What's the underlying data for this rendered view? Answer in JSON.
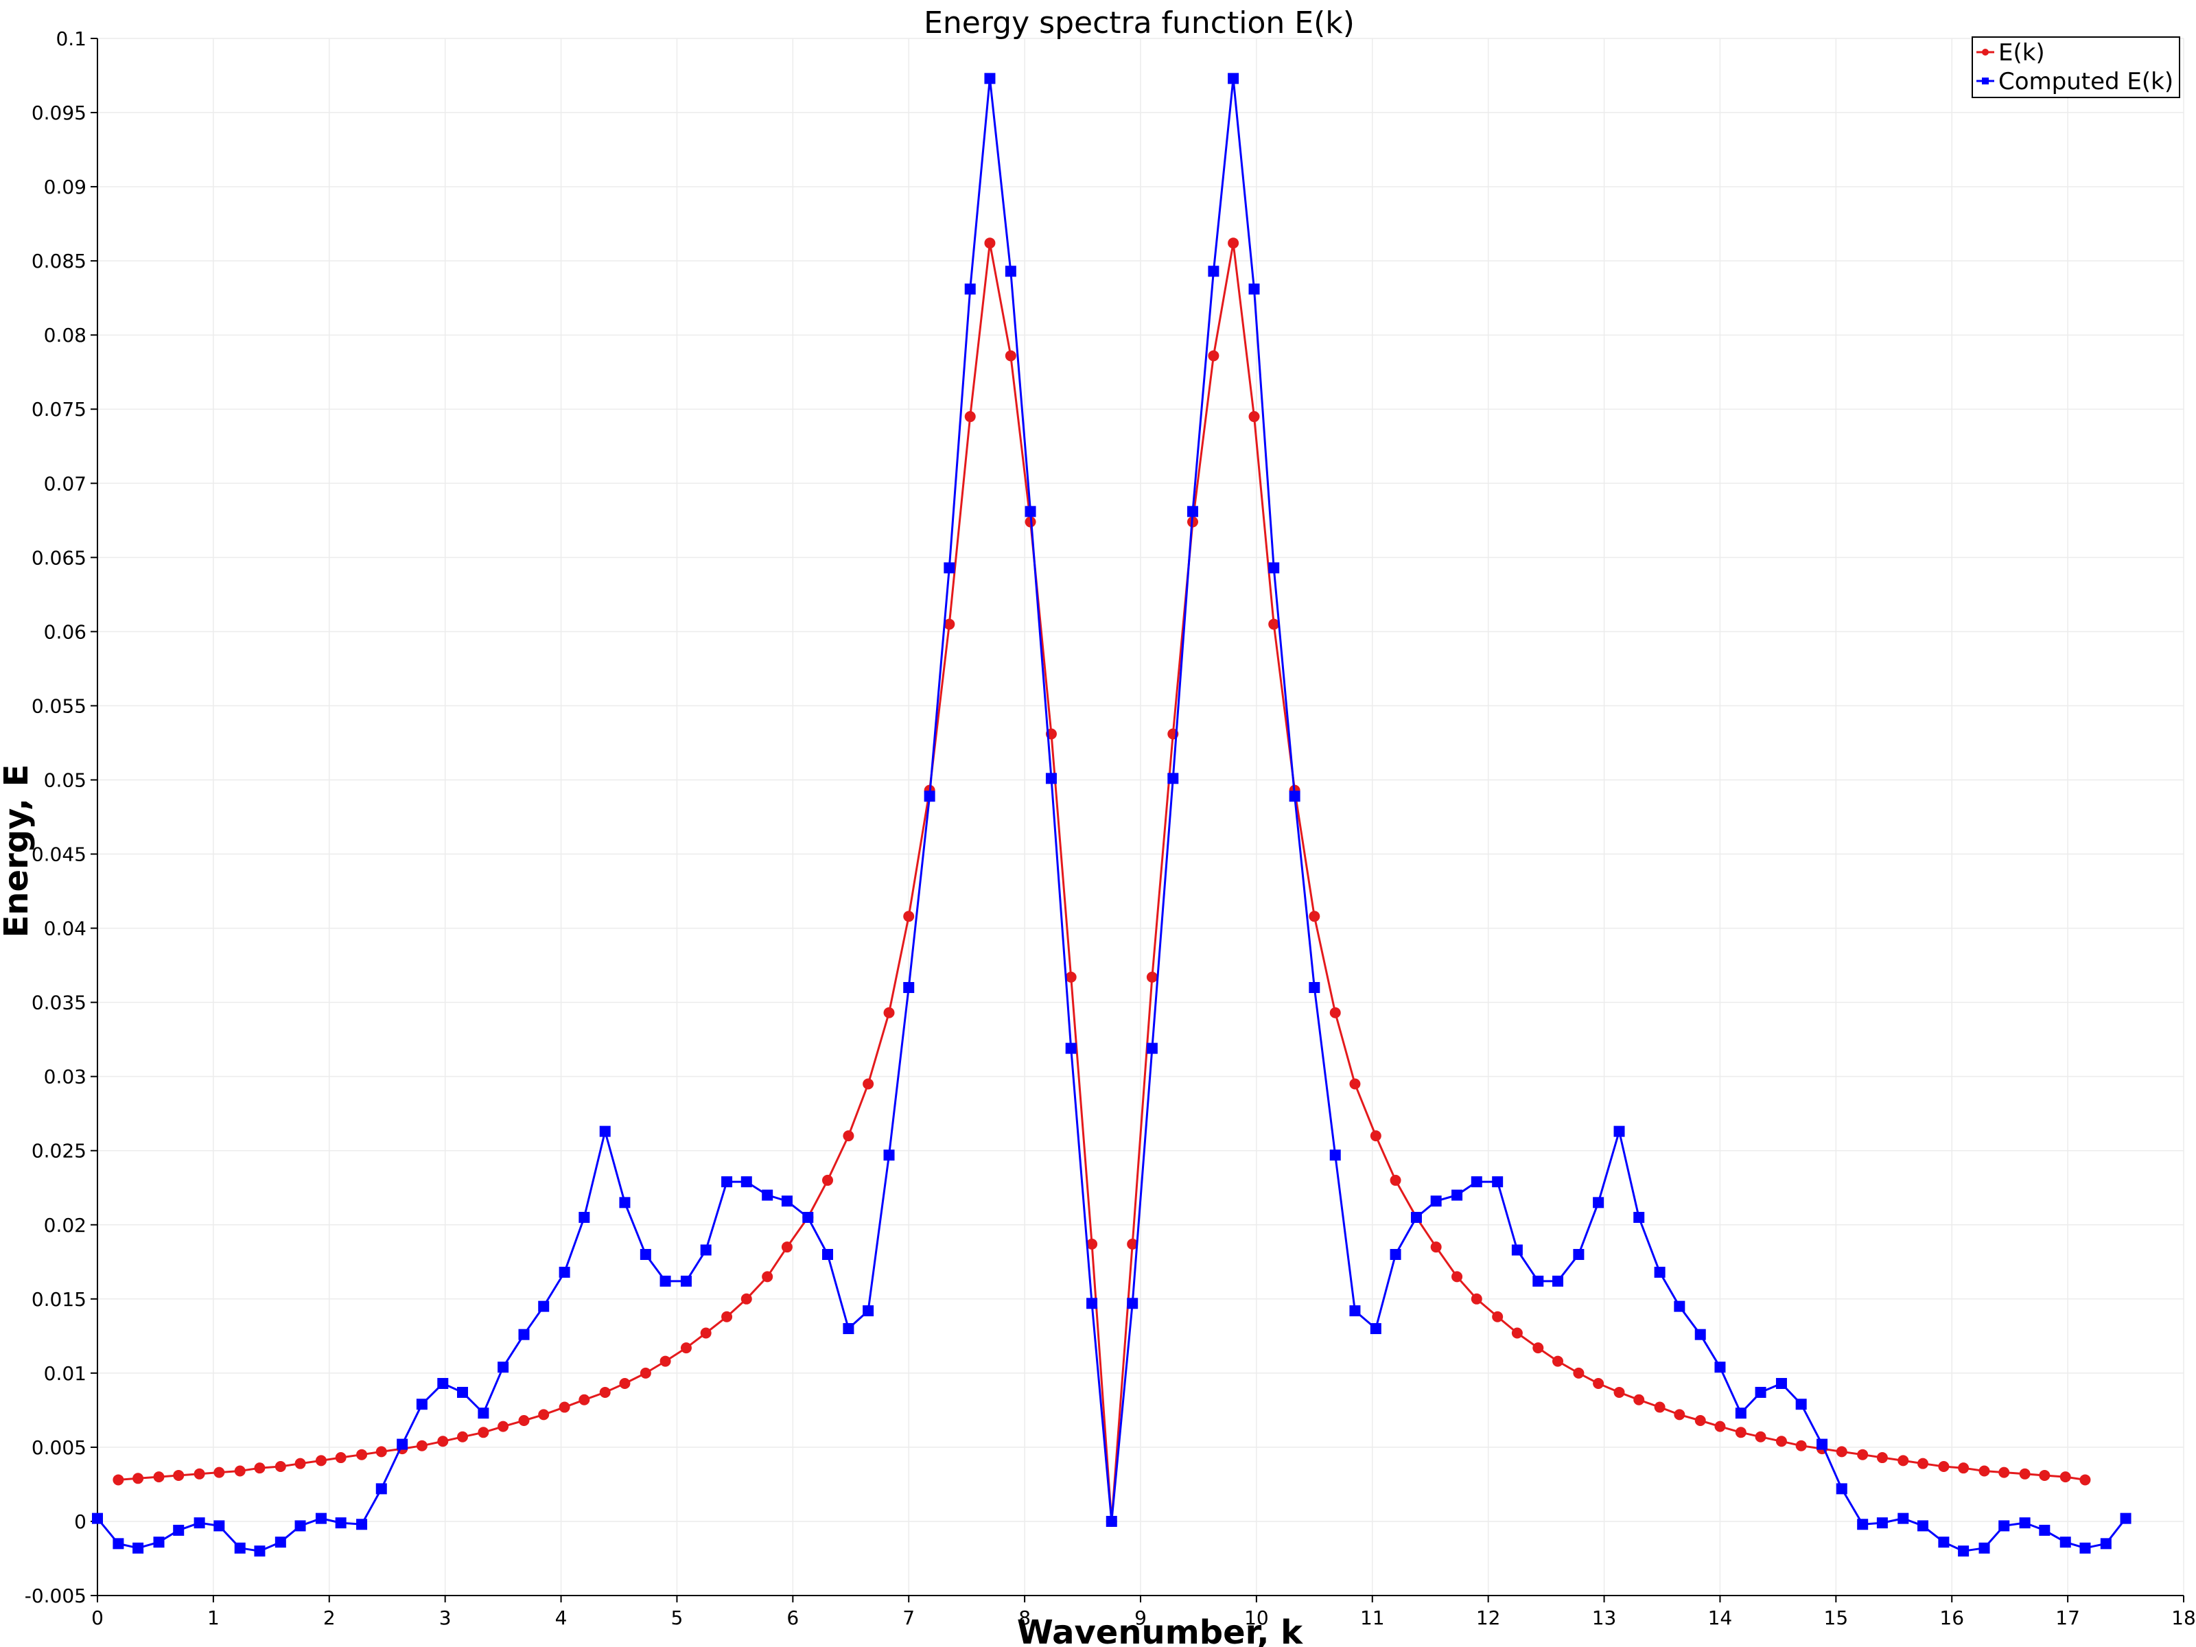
{
  "chart_data": {
    "type": "line",
    "title": "Energy spectra function E(k)",
    "xlabel": "Wavenumber, k",
    "ylabel": "Energy, E",
    "xlim": [
      0,
      18
    ],
    "ylim": [
      -0.005,
      0.1
    ],
    "x_ticks": [
      0,
      1,
      2,
      3,
      4,
      5,
      6,
      7,
      8,
      9,
      10,
      11,
      12,
      13,
      14,
      15,
      16,
      17,
      18
    ],
    "y_ticks": [
      -0.005,
      0,
      0.005,
      0.01,
      0.015,
      0.02,
      0.025,
      0.03,
      0.035,
      0.04,
      0.045,
      0.05,
      0.055,
      0.06,
      0.065,
      0.07,
      0.075,
      0.08,
      0.085,
      0.09,
      0.095,
      0.1
    ],
    "grid": true,
    "legend_position": "top-right",
    "series": [
      {
        "name": "E(k)",
        "color": "#e41a1c",
        "marker": "circle",
        "x": [
          0.18,
          0.35,
          0.53,
          0.7,
          0.88,
          1.05,
          1.23,
          1.4,
          1.58,
          1.75,
          1.93,
          2.1,
          2.28,
          2.45,
          2.63,
          2.8,
          2.98,
          3.15,
          3.33,
          3.5,
          3.68,
          3.85,
          4.03,
          4.2,
          4.38,
          4.55,
          4.73,
          4.9,
          5.08,
          5.25,
          5.43,
          5.6,
          5.78,
          5.95,
          6.13,
          6.3,
          6.48,
          6.65,
          6.83,
          7.0,
          7.18,
          7.35,
          7.53,
          7.7,
          7.88,
          8.05,
          8.23,
          8.4,
          8.58,
          8.75,
          8.93,
          9.1,
          9.28,
          9.45,
          9.63,
          9.8,
          9.98,
          10.15,
          10.33,
          10.5,
          10.68,
          10.85,
          11.03,
          11.2,
          11.38,
          11.55,
          11.73,
          11.9,
          12.08,
          12.25,
          12.43,
          12.6,
          12.78,
          12.95,
          13.13,
          13.3,
          13.48,
          13.65,
          13.83,
          14.0,
          14.18,
          14.35,
          14.53,
          14.7,
          14.88,
          15.05,
          15.23,
          15.4,
          15.58,
          15.75,
          15.93,
          16.1,
          16.28,
          16.45,
          16.63,
          16.8,
          16.98,
          17.15
        ],
        "values": [
          0.0028,
          0.0029,
          0.003,
          0.0031,
          0.0032,
          0.0033,
          0.0034,
          0.0036,
          0.0037,
          0.0039,
          0.0041,
          0.0043,
          0.0045,
          0.0047,
          0.0049,
          0.0051,
          0.0054,
          0.0057,
          0.006,
          0.0064,
          0.0068,
          0.0072,
          0.0077,
          0.0082,
          0.0087,
          0.0093,
          0.01,
          0.0108,
          0.0117,
          0.0127,
          0.0138,
          0.015,
          0.0165,
          0.0185,
          0.0205,
          0.023,
          0.026,
          0.0295,
          0.0343,
          0.0408,
          0.0493,
          0.0605,
          0.0745,
          0.0862,
          0.0786,
          0.0674,
          0.0531,
          0.0367,
          0.0187,
          0.0,
          0.0187,
          0.0367,
          0.0531,
          0.0674,
          0.0786,
          0.0862,
          0.0745,
          0.0605,
          0.0493,
          0.0408,
          0.0343,
          0.0295,
          0.026,
          0.023,
          0.0205,
          0.0185,
          0.0165,
          0.015,
          0.0138,
          0.0127,
          0.0117,
          0.0108,
          0.01,
          0.0093,
          0.0087,
          0.0082,
          0.0077,
          0.0072,
          0.0068,
          0.0064,
          0.006,
          0.0057,
          0.0054,
          0.0051,
          0.0049,
          0.0047,
          0.0045,
          0.0043,
          0.0041,
          0.0039,
          0.0037,
          0.0036,
          0.0034,
          0.0033,
          0.0032,
          0.0031,
          0.003,
          0.0028
        ]
      },
      {
        "name": "Computed E(k)",
        "color": "#0000ff",
        "marker": "square",
        "x": [
          0.0,
          0.18,
          0.35,
          0.53,
          0.7,
          0.88,
          1.05,
          1.23,
          1.4,
          1.58,
          1.75,
          1.93,
          2.1,
          2.28,
          2.45,
          2.63,
          2.8,
          2.98,
          3.15,
          3.33,
          3.5,
          3.68,
          3.85,
          4.03,
          4.2,
          4.38,
          4.55,
          4.73,
          4.9,
          5.08,
          5.25,
          5.43,
          5.6,
          5.78,
          5.95,
          6.13,
          6.3,
          6.48,
          6.65,
          6.83,
          7.0,
          7.18,
          7.35,
          7.53,
          7.7,
          7.88,
          8.05,
          8.23,
          8.4,
          8.58,
          8.75,
          8.93,
          9.1,
          9.28,
          9.45,
          9.63,
          9.8,
          9.98,
          10.15,
          10.33,
          10.5,
          10.68,
          10.85,
          11.03,
          11.2,
          11.38,
          11.55,
          11.73,
          11.9,
          12.08,
          12.25,
          12.43,
          12.6,
          12.78,
          12.95,
          13.13,
          13.3,
          13.48,
          13.65,
          13.83,
          14.0,
          14.18,
          14.35,
          14.53,
          14.7,
          14.88,
          15.05,
          15.23,
          15.4,
          15.58,
          15.75,
          15.93,
          16.1,
          16.28,
          16.45,
          16.63,
          16.8,
          16.98,
          17.15,
          17.33,
          17.5
        ],
        "values": [
          0.0002,
          -0.0015,
          -0.0018,
          -0.0014,
          -0.0006,
          -0.0001,
          -0.0003,
          -0.0018,
          -0.002,
          -0.0014,
          -0.0003,
          0.0002,
          -0.0001,
          -0.0002,
          0.0022,
          0.0052,
          0.0079,
          0.0093,
          0.0087,
          0.0073,
          0.0104,
          0.0126,
          0.0145,
          0.0168,
          0.0205,
          0.0263,
          0.0215,
          0.018,
          0.0162,
          0.0162,
          0.0183,
          0.0229,
          0.0229,
          0.022,
          0.0216,
          0.0205,
          0.018,
          0.013,
          0.0142,
          0.0247,
          0.036,
          0.0489,
          0.0643,
          0.0831,
          0.0973,
          0.0843,
          0.0681,
          0.0501,
          0.0319,
          0.0147,
          0.0,
          0.0147,
          0.0319,
          0.0501,
          0.0681,
          0.0843,
          0.0973,
          0.0831,
          0.0643,
          0.0489,
          0.036,
          0.0247,
          0.0142,
          0.013,
          0.018,
          0.0205,
          0.0216,
          0.022,
          0.0229,
          0.0229,
          0.0183,
          0.0162,
          0.0162,
          0.018,
          0.0215,
          0.0263,
          0.0205,
          0.0168,
          0.0145,
          0.0126,
          0.0104,
          0.0073,
          0.0087,
          0.0093,
          0.0079,
          0.0052,
          0.0022,
          -0.0002,
          -0.0001,
          0.0002,
          -0.0003,
          -0.0014,
          -0.002,
          -0.0018,
          -0.0003,
          -0.0001,
          -0.0006,
          -0.0014,
          -0.0018,
          -0.0015,
          0.0002
        ]
      }
    ]
  }
}
